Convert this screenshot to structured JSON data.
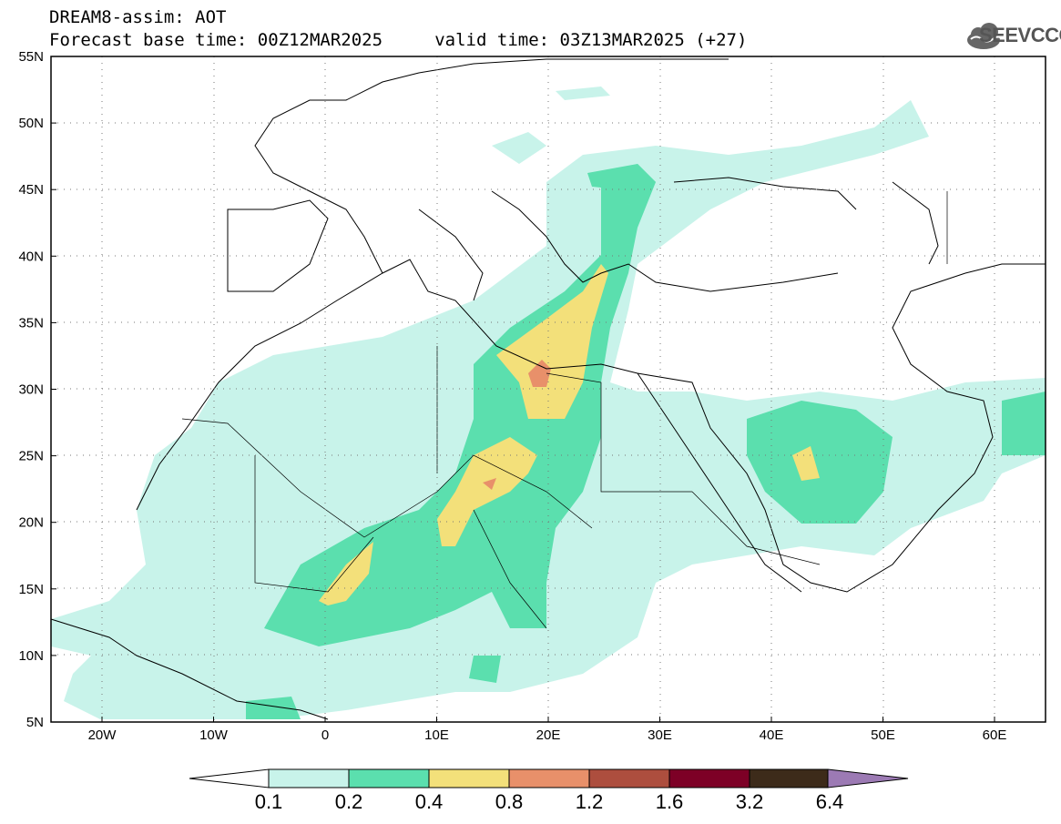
{
  "title": {
    "line1": "DREAM8-assim: AOT",
    "line2": "Forecast base time: 00Z12MAR2025     valid time: 03Z13MAR2025 (+27)"
  },
  "logo": {
    "text": "SEEVCCC",
    "icon": "cloud-logo-icon"
  },
  "map": {
    "lon_range": [
      -25,
      65
    ],
    "lat_range": [
      5,
      55
    ],
    "lat_labels": [
      "55N",
      "50N",
      "45N",
      "40N",
      "35N",
      "30N",
      "25N",
      "20N",
      "15N",
      "10N",
      "5N"
    ],
    "lon_labels": [
      "20W",
      "10W",
      "0",
      "10E",
      "20E",
      "30E",
      "40E",
      "50E",
      "60E"
    ],
    "grid": "dotted"
  },
  "legend": {
    "values": [
      "0.1",
      "0.2",
      "0.4",
      "0.8",
      "1.2",
      "1.6",
      "3.2",
      "6.4"
    ],
    "colors": [
      "#ffffff",
      "#c8f3ea",
      "#5bdfae",
      "#f3e07a",
      "#e8906a",
      "#ad4e3e",
      "#7d0026",
      "#3d2b1a",
      "#9c7ab4"
    ]
  }
}
